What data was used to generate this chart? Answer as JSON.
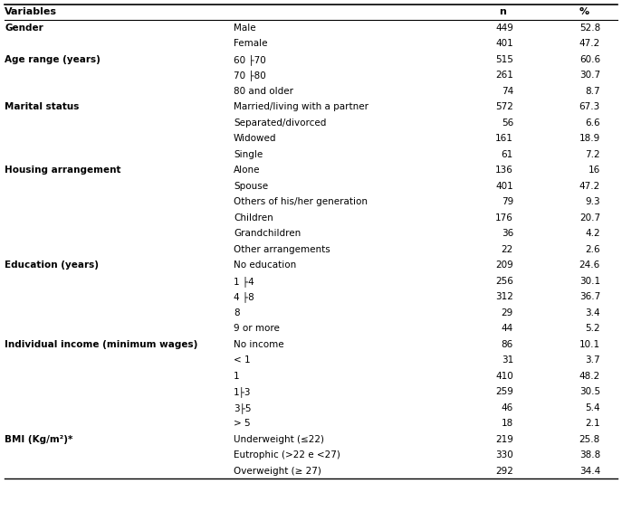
{
  "header": [
    "Variables",
    "n",
    "%"
  ],
  "rows": [
    [
      "Gender",
      "Male",
      "449",
      "52.8"
    ],
    [
      "",
      "Female",
      "401",
      "47.2"
    ],
    [
      "Age range (years)",
      "60 ├70",
      "515",
      "60.6"
    ],
    [
      "",
      "70 ├80",
      "261",
      "30.7"
    ],
    [
      "",
      "80 and older",
      "74",
      "8.7"
    ],
    [
      "Marital status",
      "Married/living with a partner",
      "572",
      "67.3"
    ],
    [
      "",
      "Separated/divorced",
      "56",
      "6.6"
    ],
    [
      "",
      "Widowed",
      "161",
      "18.9"
    ],
    [
      "",
      "Single",
      "61",
      "7.2"
    ],
    [
      "Housing arrangement",
      "Alone",
      "136",
      "16"
    ],
    [
      "",
      "Spouse",
      "401",
      "47.2"
    ],
    [
      "",
      "Others of his/her generation",
      "79",
      "9.3"
    ],
    [
      "",
      "Children",
      "176",
      "20.7"
    ],
    [
      "",
      "Grandchildren",
      "36",
      "4.2"
    ],
    [
      "",
      "Other arrangements",
      "22",
      "2.6"
    ],
    [
      "Education (years)",
      "No education",
      "209",
      "24.6"
    ],
    [
      "",
      "1 ├4",
      "256",
      "30.1"
    ],
    [
      "",
      "4 ├8",
      "312",
      "36.7"
    ],
    [
      "",
      "8",
      "29",
      "3.4"
    ],
    [
      "",
      "9 or more",
      "44",
      "5.2"
    ],
    [
      "Individual income (minimum wages)",
      "No income",
      "86",
      "10.1"
    ],
    [
      "",
      "< 1",
      "31",
      "3.7"
    ],
    [
      "",
      "1",
      "410",
      "48.2"
    ],
    [
      "",
      "1├3",
      "259",
      "30.5"
    ],
    [
      "",
      "3├5",
      "46",
      "5.4"
    ],
    [
      "",
      "> 5",
      "18",
      "2.1"
    ],
    [
      "BMI (Kg/m²)*",
      "Underweight (≤22)",
      "219",
      "25.8"
    ],
    [
      "",
      "Eutrophic (>22 e <27)",
      "330",
      "38.8"
    ],
    [
      "",
      "Overweight (≥ 27)",
      "292",
      "34.4"
    ]
  ],
  "background_color": "#ffffff",
  "text_color": "#000000",
  "font_size": 7.5,
  "header_font_size": 8.0,
  "fig_width": 6.87,
  "fig_height": 5.76,
  "dpi": 100
}
